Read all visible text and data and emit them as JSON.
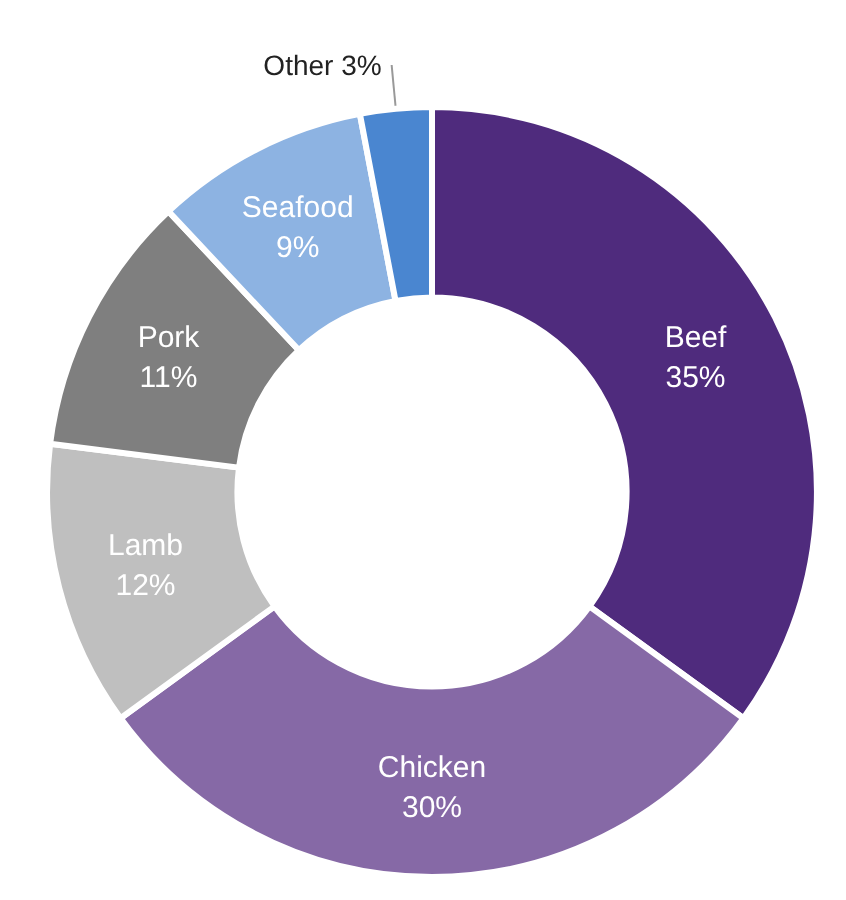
{
  "chart_data": {
    "type": "donut",
    "categories": [
      "Beef",
      "Chicken",
      "Lamb",
      "Pork",
      "Seafood",
      "Other"
    ],
    "values": [
      35,
      30,
      12,
      11,
      9,
      3
    ],
    "value_labels": [
      "35%",
      "30%",
      "12%",
      "11%",
      "9%",
      "3%"
    ],
    "colors": [
      "#4f2b7d",
      "#8669a6",
      "#bfbfbf",
      "#7f7f7f",
      "#8db3e2",
      "#4a86d0"
    ],
    "legend": false
  }
}
